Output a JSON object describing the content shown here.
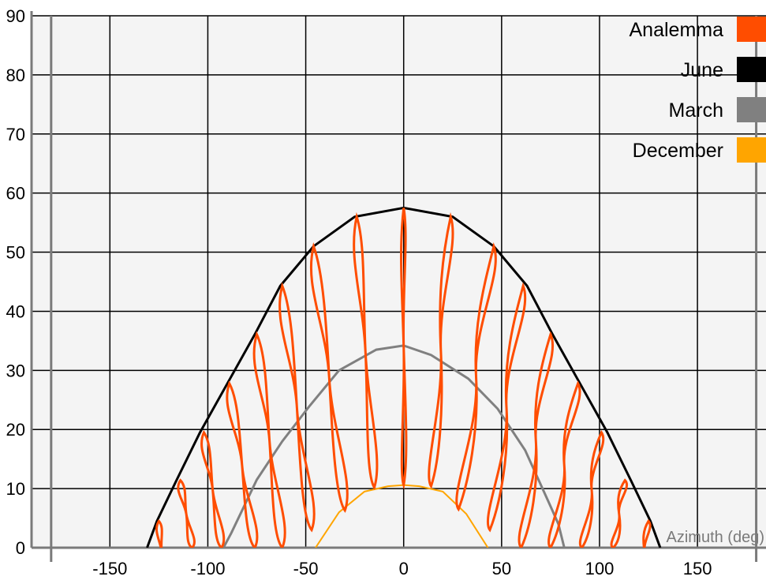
{
  "chart_data": {
    "type": "line",
    "title": "",
    "xlabel": "Azimuth (deg)",
    "ylabel": "",
    "xlim": [
      -190,
      185
    ],
    "ylim": [
      0,
      90
    ],
    "x_ticks": [
      -150,
      -100,
      -50,
      0,
      50,
      100,
      150
    ],
    "y_ticks": [
      0,
      10,
      20,
      30,
      40,
      50,
      60,
      70,
      80,
      90
    ],
    "grid": true,
    "legend_position": "top-right",
    "colors": {
      "Analemma": "#ff4d00",
      "June": "#000000",
      "March": "#808080",
      "December": "#ffa500",
      "plot_bg": "#f4f4f4",
      "grid": "#000000",
      "frame": "#7a7a7a"
    },
    "series": [
      {
        "name": "June",
        "x": [
          -131,
          -126,
          -116,
          -104,
          -90,
          -76,
          -63,
          -46,
          -25,
          0,
          25,
          46,
          63,
          76,
          90,
          104,
          116,
          126,
          131
        ],
        "y": [
          0,
          4.5,
          11.4,
          19.5,
          27.8,
          36.1,
          44.3,
          51,
          56,
          57.5,
          56,
          51,
          44.3,
          36.1,
          27.8,
          19.5,
          11.4,
          4.5,
          0
        ]
      },
      {
        "name": "March",
        "x": [
          -92,
          -88,
          -75,
          -62,
          -48,
          -33,
          -14,
          0,
          14,
          33,
          48,
          62,
          75,
          79,
          82
        ],
        "y": [
          0,
          2.5,
          11.5,
          18,
          24,
          30,
          33.5,
          34.2,
          32.6,
          28.6,
          23.5,
          16.5,
          7,
          4,
          0
        ]
      },
      {
        "name": "December",
        "x": [
          -45,
          -33,
          -20,
          -8,
          0,
          8,
          20,
          32,
          43
        ],
        "y": [
          0,
          6,
          9.5,
          10.4,
          10.6,
          10.4,
          9.5,
          5.7,
          0
        ]
      },
      {
        "name": "Analemma",
        "loops": [
          {
            "peak": [
              -125,
              4.5
            ],
            "bottom": [
              -122,
              -6
            ],
            "width": 3
          },
          {
            "peak": [
              -114,
              11.4
            ],
            "bottom": [
              -108,
              0
            ],
            "width": 3.5
          },
          {
            "peak": [
              -102,
              19.5
            ],
            "bottom": [
              -93,
              0
            ],
            "width": 4
          },
          {
            "peak": [
              -89,
              27.8
            ],
            "bottom": [
              -76,
              0
            ],
            "width": 4.5
          },
          {
            "peak": [
              -75,
              36.1
            ],
            "bottom": [
              -62,
              0
            ],
            "width": 5
          },
          {
            "peak": [
              -62,
              44.3
            ],
            "bottom": [
              -47,
              3
            ],
            "width": 5
          },
          {
            "peak": [
              -46,
              51
            ],
            "bottom": [
              -30,
              6.3
            ],
            "width": 5
          },
          {
            "peak": [
              -24,
              56
            ],
            "bottom": [
              -15,
              10.2
            ],
            "width": 4.5
          },
          {
            "peak": [
              0,
              57.5
            ],
            "bottom": [
              0,
              10.6
            ],
            "width": 2.5
          },
          {
            "peak": [
              24,
              56
            ],
            "bottom": [
              14,
              10.4
            ],
            "width": 4.5
          },
          {
            "peak": [
              46,
              51
            ],
            "bottom": [
              28,
              6.5
            ],
            "width": 5
          },
          {
            "peak": [
              61,
              44.3
            ],
            "bottom": [
              44,
              3
            ],
            "width": 5
          },
          {
            "peak": [
              75,
              36.1
            ],
            "bottom": [
              60,
              0
            ],
            "width": 5
          },
          {
            "peak": [
              89,
              27.8
            ],
            "bottom": [
              75,
              0
            ],
            "width": 4.5
          },
          {
            "peak": [
              101,
              19.5
            ],
            "bottom": [
              91,
              0
            ],
            "width": 4
          },
          {
            "peak": [
              113,
              11.4
            ],
            "bottom": [
              107,
              0
            ],
            "width": 3.5
          },
          {
            "peak": [
              125,
              4.5
            ],
            "bottom": [
              121,
              -6
            ],
            "width": 3
          }
        ]
      }
    ],
    "legend": [
      "Analemma",
      "June",
      "March",
      "December"
    ]
  }
}
